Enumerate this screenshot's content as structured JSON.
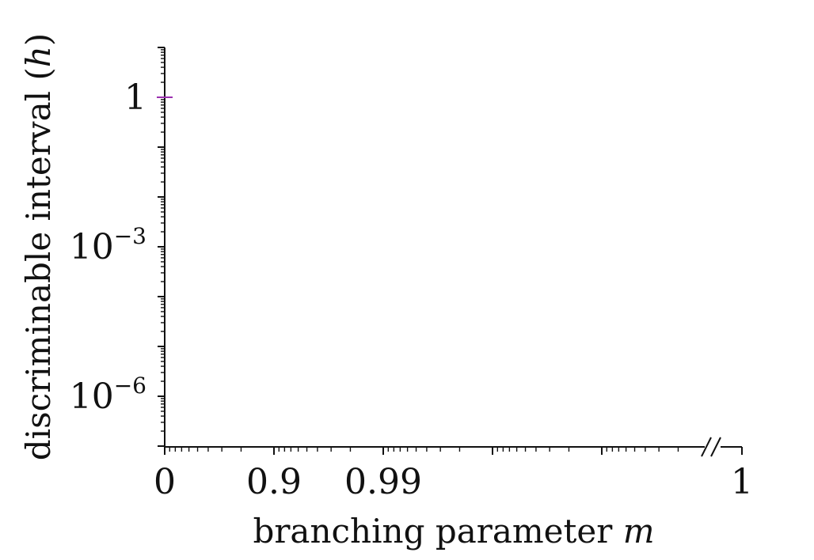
{
  "chart_data": {
    "type": "line",
    "title": "",
    "xlabel_text": "branching parameter ",
    "xlabel_var": "m",
    "ylabel_text": "discriminable interval (",
    "ylabel_var": "h",
    "ylabel_close": ")",
    "x_scale": "1-minus-log-decades",
    "x_ticks": [
      {
        "label": "0",
        "value": 0
      },
      {
        "label": "0.9",
        "value": 0.9
      },
      {
        "label": "0.99",
        "value": 0.99
      },
      {
        "label": "1",
        "value": 1
      }
    ],
    "x_axis_break_before_last": true,
    "y_scale": "log",
    "ylim": [
      1e-08,
      10
    ],
    "y_ticks": [
      {
        "base": "1",
        "exp": "",
        "value": 1
      },
      {
        "base": "10",
        "exp": "−3",
        "value": 0.001
      },
      {
        "base": "10",
        "exp": "−6",
        "value": 1e-06
      }
    ],
    "grid": false,
    "series": [
      {
        "color": "#9b30b0",
        "points": [
          {
            "x": 0,
            "y": 1
          }
        ]
      }
    ]
  }
}
